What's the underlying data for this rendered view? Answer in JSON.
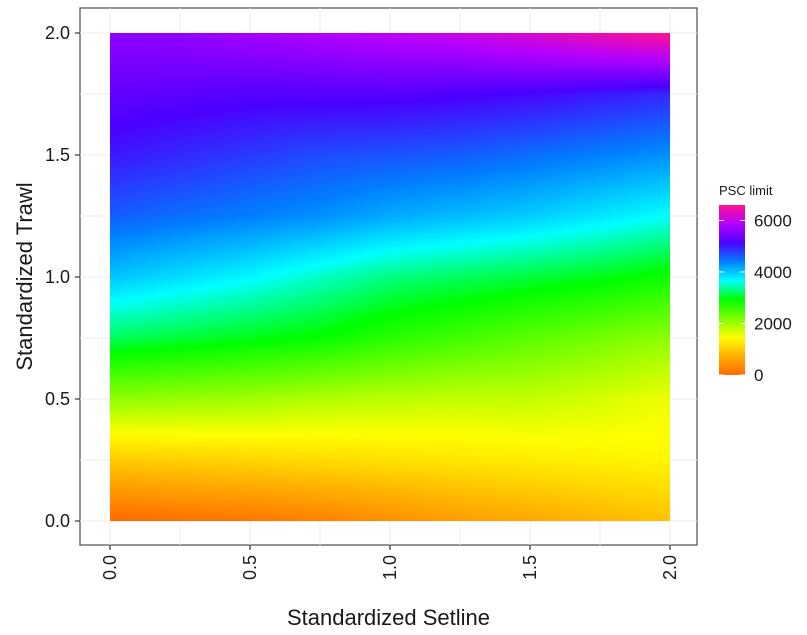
{
  "chart_data": {
    "type": "heatmap",
    "title": "",
    "xlabel": "Standardized Setline",
    "ylabel": "Standardized Trawl",
    "xlim": [
      0,
      2
    ],
    "ylim": [
      0,
      2
    ],
    "x_ticks": [
      0,
      0.5,
      1,
      1.5,
      2
    ],
    "y_ticks": [
      0,
      0.5,
      1,
      1.5,
      2
    ],
    "x_tick_labels": [
      "0.0",
      "0.5",
      "1.0",
      "1.5",
      "2.0"
    ],
    "y_tick_labels": [
      "0.0",
      "0.5",
      "1.0",
      "1.5",
      "2.0"
    ],
    "x_tick_label_rotation": "vertical",
    "grid": true,
    "panel_border": true,
    "color_scale": {
      "title": "PSC limit",
      "min": 0,
      "max": 6600,
      "breaks": [
        0,
        2000,
        4000,
        6000
      ],
      "break_labels": [
        "0",
        "2000",
        "4000",
        "6000"
      ],
      "colors": [
        "#ff6a00",
        "#ffb000",
        "#ffff00",
        "#7dff00",
        "#00ff00",
        "#00ffff",
        "#0080ff",
        "#4b00ff",
        "#b400ff",
        "#ff1493"
      ],
      "legend_position": "right"
    },
    "x": [
      0,
      0.25,
      0.5,
      0.75,
      1,
      1.25,
      1.5,
      1.75,
      2
    ],
    "y": [
      0,
      0.25,
      0.5,
      0.75,
      1,
      1.25,
      1.5,
      1.75,
      2
    ],
    "z": [
      [
        0,
        80,
        150,
        250,
        400,
        550,
        650,
        780,
        900
      ],
      [
        1000,
        1050,
        1100,
        1150,
        1200,
        1250,
        1300,
        1350,
        1400
      ],
      [
        2100,
        2050,
        2000,
        1900,
        1850,
        1800,
        1800,
        1700,
        1550
      ],
      [
        3200,
        3100,
        3000,
        2900,
        2700,
        2550,
        2400,
        2250,
        2100
      ],
      [
        4000,
        3850,
        3700,
        3500,
        3300,
        3200,
        3100,
        3000,
        2850
      ],
      [
        4600,
        4500,
        4400,
        4300,
        4150,
        4050,
        3950,
        3800,
        3650
      ],
      [
        5000,
        4900,
        4800,
        4700,
        4650,
        4600,
        4500,
        4400,
        4300
      ],
      [
        5300,
        5250,
        5200,
        5200,
        5200,
        5150,
        5100,
        5000,
        4900
      ],
      [
        5600,
        5650,
        5750,
        5850,
        5950,
        6050,
        6200,
        6400,
        6600
      ]
    ]
  }
}
